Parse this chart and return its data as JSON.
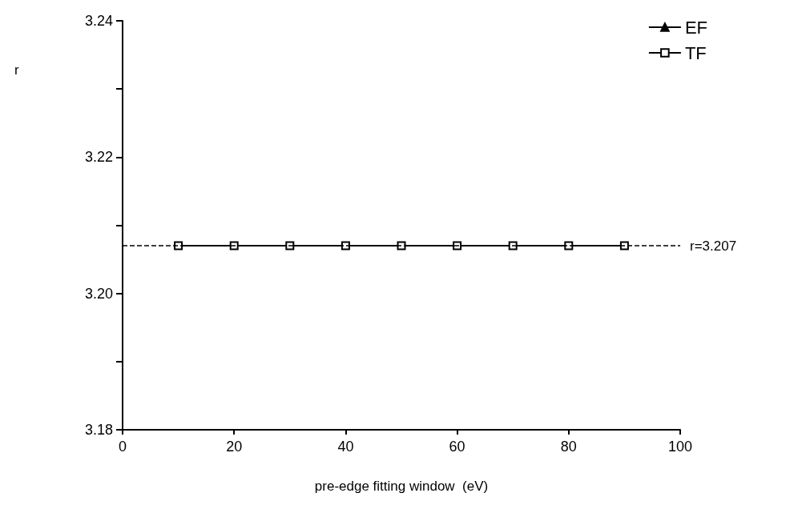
{
  "chart_data": {
    "type": "line",
    "xlabel": "pre-edge fitting window  (eV)",
    "ylabel": "r",
    "x": [
      10,
      20,
      30,
      40,
      50,
      60,
      70,
      80,
      90
    ],
    "series": [
      {
        "name": "EF",
        "color": "#000000",
        "marker": "triangle",
        "values": [
          null,
          null,
          null,
          null,
          null,
          null,
          null,
          null,
          null
        ]
      },
      {
        "name": "TF",
        "color": "#000000",
        "marker": "square",
        "values": [
          3.207,
          3.207,
          3.207,
          3.207,
          3.207,
          3.207,
          3.207,
          3.207,
          3.207
        ]
      }
    ],
    "xlim": [
      0,
      100
    ],
    "xticks": [
      0,
      20,
      40,
      60,
      80,
      100
    ],
    "ylim": [
      3.18,
      3.24
    ],
    "yticks": [
      {
        "value": 3.18,
        "label": "3.18"
      },
      {
        "value": 3.19,
        "label": null
      },
      {
        "value": 3.2,
        "label": "3.20"
      },
      {
        "value": 3.21,
        "label": null
      },
      {
        "value": 3.22,
        "label": "3.22"
      },
      {
        "value": 3.23,
        "label": null
      },
      {
        "value": 3.24,
        "label": "3.24"
      }
    ],
    "ref_lines": [
      {
        "axis": "y",
        "value": 3.207,
        "label": "r=3.207",
        "line_style": "dashed"
      }
    ],
    "grid": false,
    "legend": "top right",
    "line_style": "solid"
  }
}
